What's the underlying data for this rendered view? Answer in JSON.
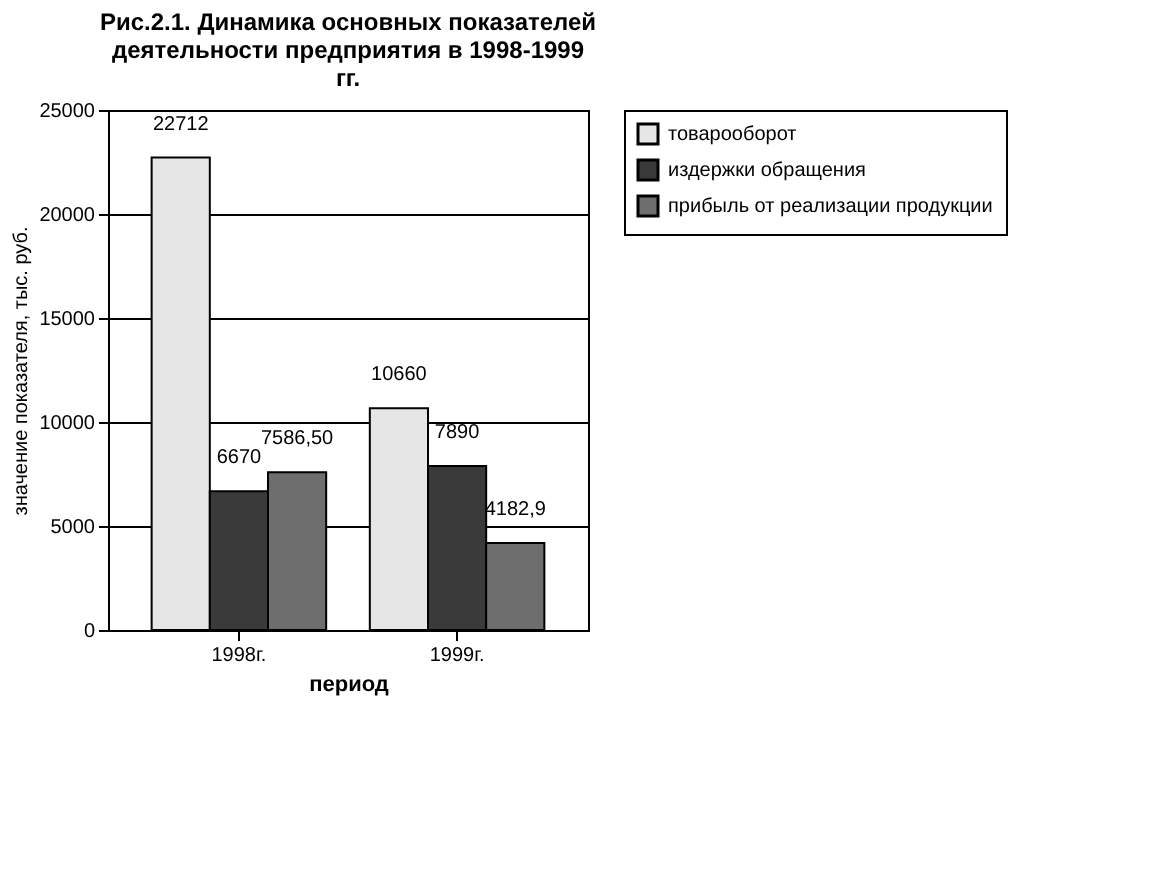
{
  "chart_data": {
    "type": "bar",
    "title": "Рис.2.1. Динамика основных показателей деятельности предприятия в 1998-1999 гг.",
    "xlabel": "период",
    "ylabel": "значение показателя, тыс. руб.",
    "categories": [
      "1998г.",
      "1999г."
    ],
    "series": [
      {
        "name": "товарооборот",
        "color": "#e6e6e6",
        "values": [
          22712,
          10660
        ],
        "value_labels": [
          "22712",
          "10660"
        ]
      },
      {
        "name": "издержки обращения",
        "color": "#3a3a3a",
        "values": [
          6670,
          7890
        ],
        "value_labels": [
          "6670",
          "7890"
        ]
      },
      {
        "name": "прибыль от реализации продукции",
        "color": "#6e6e6e",
        "values": [
          7586.5,
          4182.9
        ],
        "value_labels": [
          "7586,50",
          "4182,9"
        ]
      }
    ],
    "ylim": [
      0,
      25000
    ],
    "yticks": [
      0,
      5000,
      10000,
      15000,
      20000,
      25000
    ],
    "grid": "y",
    "legend": "right"
  }
}
